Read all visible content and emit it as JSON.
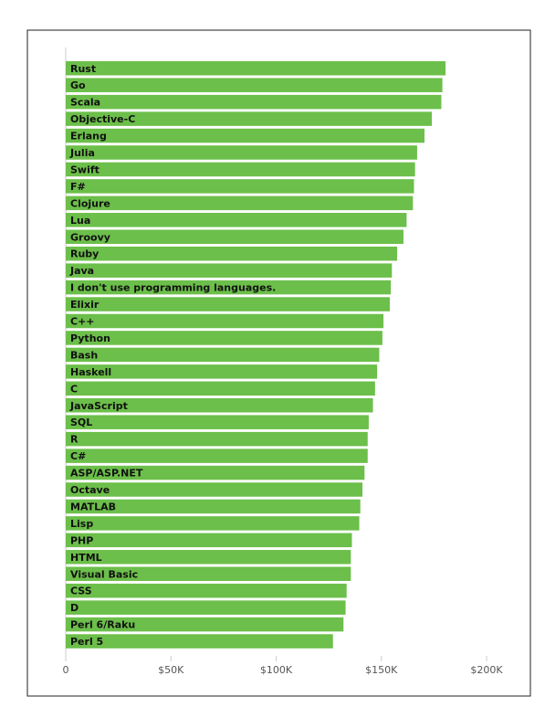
{
  "chart_data": {
    "type": "hbar",
    "color": "#6cbf4a",
    "categories": [
      "Rust",
      "Go",
      "Scala",
      "Objective-C",
      "Erlang",
      "Julia",
      "Swift",
      "F#",
      "Clojure",
      "Lua",
      "Groovy",
      "Ruby",
      "Java",
      "I don't use programming languages.",
      "Elixir",
      "C++",
      "Python",
      "Bash",
      "Haskell",
      "C",
      "JavaScript",
      "SQL",
      "R",
      "C#",
      "ASP/ASP.NET",
      "Octave",
      "MATLAB",
      "Lisp",
      "PHP",
      "HTML",
      "Visual Basic",
      "CSS",
      "D",
      "Perl 6/Raku",
      "Perl 5"
    ],
    "values": [
      180500,
      179000,
      178500,
      174000,
      170500,
      167000,
      166000,
      165500,
      165000,
      162000,
      160500,
      157500,
      155000,
      154500,
      154000,
      151000,
      150500,
      149000,
      148000,
      147000,
      146000,
      144000,
      143500,
      143500,
      142000,
      141000,
      140000,
      139500,
      136000,
      135500,
      135500,
      133500,
      133000,
      132000,
      127000
    ],
    "xlim": [
      0,
      200000
    ],
    "xticks": [
      0,
      {
        "value": 50000,
        "label": "$50K"
      },
      {
        "value": 100000,
        "label": "$100K"
      },
      {
        "value": 150000,
        "label": "$150K"
      },
      {
        "value": 200000,
        "label": "$200K"
      }
    ]
  }
}
